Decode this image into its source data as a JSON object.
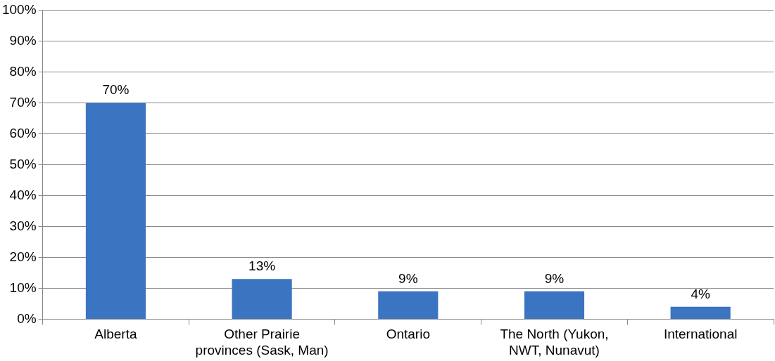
{
  "chart_data": {
    "type": "bar",
    "categories": [
      "Alberta",
      "Other Prairie provinces (Sask, Man)",
      "Ontario",
      "The North (Yukon, NWT, Nunavut)",
      "International"
    ],
    "values": [
      70,
      13,
      9,
      9,
      4
    ],
    "color": "#3b74c0",
    "value_labels": [
      "70%",
      "13%",
      "9%",
      "9%",
      "4%"
    ],
    "ylim": [
      0,
      100
    ],
    "yticks": [
      {
        "value": 0,
        "label": "0%"
      },
      {
        "value": 10,
        "label": "10%"
      },
      {
        "value": 20,
        "label": "20%"
      },
      {
        "value": 30,
        "label": "30%"
      },
      {
        "value": 40,
        "label": "40%"
      },
      {
        "value": 50,
        "label": "50%"
      },
      {
        "value": 60,
        "label": "60%"
      },
      {
        "value": 70,
        "label": "70%"
      },
      {
        "value": 80,
        "label": "80%"
      },
      {
        "value": 90,
        "label": "90%"
      },
      {
        "value": 100,
        "label": "100%"
      }
    ],
    "grid": "y",
    "legend": false
  }
}
